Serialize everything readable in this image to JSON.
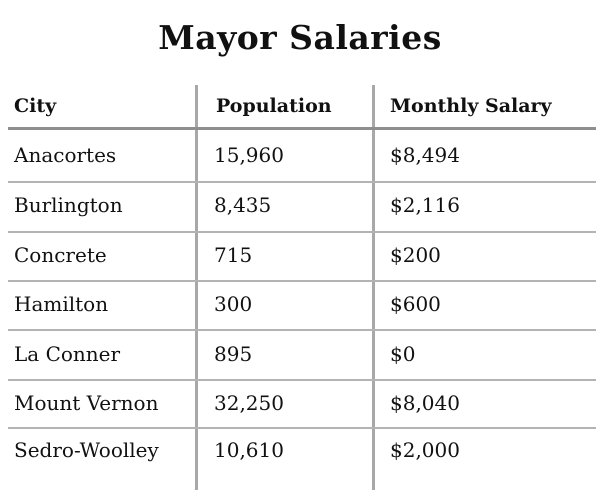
{
  "title": "Mayor Salaries",
  "columns": [
    "City",
    "Population",
    "Monthly Salary"
  ],
  "rows": [
    {
      "city": "Anacortes",
      "population": "15,960",
      "salary": "$8,494"
    },
    {
      "city": "Burlington",
      "population": "8,435",
      "salary": "$2,116"
    },
    {
      "city": "Concrete",
      "population": "715",
      "salary": "$200"
    },
    {
      "city": "Hamilton",
      "population": "300",
      "salary": "$600"
    },
    {
      "city": "La Conner",
      "population": "895",
      "salary": "$0"
    },
    {
      "city": "Mount Vernon",
      "population": "32,250",
      "salary": "$8,040"
    },
    {
      "city": "Sedro-Woolley",
      "population": "10,610",
      "salary": "$2,000"
    }
  ]
}
